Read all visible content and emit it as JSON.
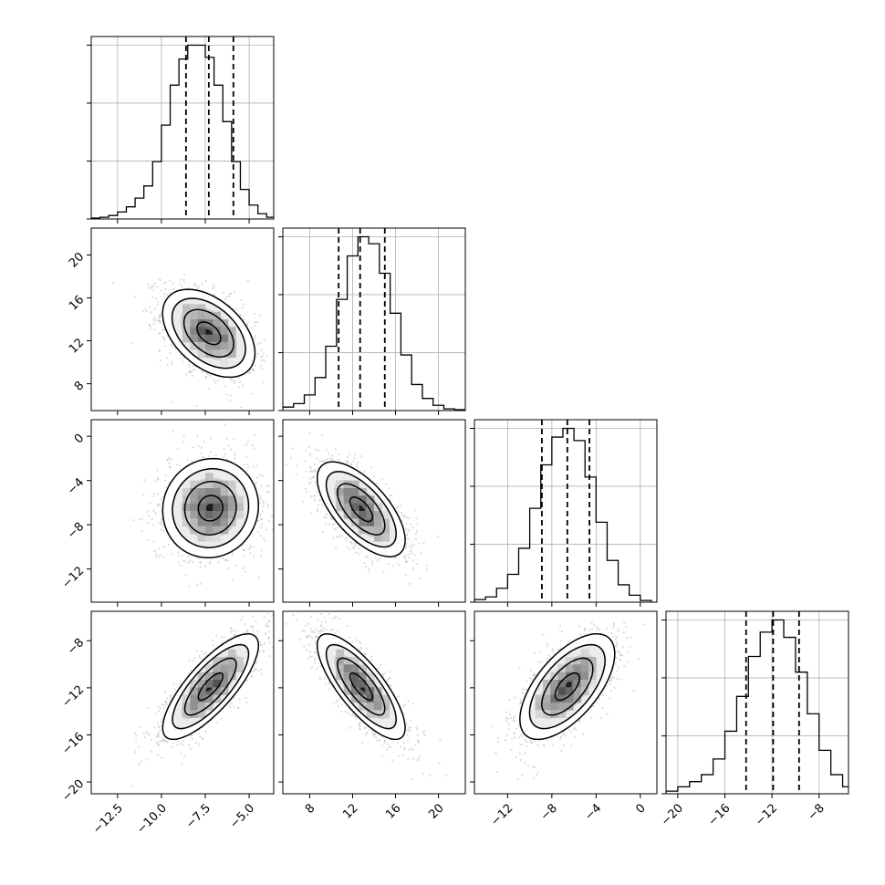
{
  "chart_data": {
    "type": "corner",
    "grid": true,
    "variables": [
      {
        "range": [
          -14,
          -3.6
        ],
        "ticks": [
          -12.5,
          -10.0,
          -7.5,
          -5.0
        ],
        "tick_labels": [
          "−12.5",
          "−10.0",
          "−7.5",
          "−5.0"
        ],
        "quantiles": [
          -8.6,
          -7.3,
          -5.9
        ],
        "hist_bin_edges": [
          -14.0,
          -13.5,
          -13.0,
          -12.5,
          -12.0,
          -11.5,
          -11.0,
          -10.5,
          -10.0,
          -9.5,
          -9.0,
          -8.5,
          -8.0,
          -7.5,
          -7.0,
          -6.5,
          -6.0,
          -5.5,
          -5.0,
          -4.5,
          -4.0,
          -3.5
        ],
        "hist_heights": [
          0.005,
          0.01,
          0.02,
          0.04,
          0.07,
          0.12,
          0.19,
          0.33,
          0.54,
          0.77,
          0.92,
          1.0,
          1.0,
          0.93,
          0.77,
          0.56,
          0.33,
          0.17,
          0.08,
          0.03,
          0.01
        ]
      },
      {
        "range": [
          5.5,
          22.5
        ],
        "ticks": [
          8,
          12,
          16,
          20
        ],
        "tick_labels": [
          "8",
          "12",
          "16",
          "20"
        ],
        "quantiles": [
          10.7,
          12.7,
          15.0
        ],
        "hist_bin_edges": [
          5.5,
          6.5,
          7.5,
          8.5,
          9.5,
          10.5,
          11.5,
          12.5,
          13.5,
          14.5,
          15.5,
          16.5,
          17.5,
          18.5,
          19.5,
          20.5,
          21.5,
          22.5
        ],
        "hist_heights": [
          0.02,
          0.04,
          0.09,
          0.19,
          0.37,
          0.64,
          0.89,
          1.0,
          0.96,
          0.79,
          0.56,
          0.32,
          0.15,
          0.07,
          0.03,
          0.01,
          0.005
        ]
      },
      {
        "range": [
          -15,
          1.5
        ],
        "ticks": [
          -12,
          -8,
          -4,
          0
        ],
        "tick_labels": [
          "−12",
          "−8",
          "−4",
          "0"
        ],
        "quantiles": [
          -8.9,
          -6.6,
          -4.6
        ],
        "hist_bin_edges": [
          -15.0,
          -14.0,
          -13.0,
          -12.0,
          -11.0,
          -10.0,
          -9.0,
          -8.0,
          -7.0,
          -6.0,
          -5.0,
          -4.0,
          -3.0,
          -2.0,
          -1.0,
          0.0,
          1.0
        ],
        "hist_heights": [
          0.015,
          0.03,
          0.08,
          0.16,
          0.31,
          0.54,
          0.79,
          0.95,
          1.0,
          0.93,
          0.72,
          0.46,
          0.24,
          0.1,
          0.04,
          0.01
        ]
      },
      {
        "range": [
          -21,
          -5.5
        ],
        "ticks": [
          -20,
          -16,
          -12,
          -8
        ],
        "tick_labels": [
          "−20",
          "−16",
          "−12",
          "−8"
        ],
        "quantiles": [
          -14.2,
          -11.9,
          -9.7
        ],
        "hist_bin_edges": [
          -21.0,
          -20.0,
          -19.0,
          -18.0,
          -17.0,
          -16.0,
          -15.0,
          -14.0,
          -13.0,
          -12.0,
          -11.0,
          -10.0,
          -9.0,
          -8.0,
          -7.0,
          -6.0,
          -5.0
        ],
        "hist_heights": [
          0.015,
          0.04,
          0.07,
          0.11,
          0.2,
          0.36,
          0.56,
          0.79,
          0.93,
          1.0,
          0.9,
          0.7,
          0.46,
          0.25,
          0.11,
          0.04
        ]
      }
    ],
    "pairs": [
      {
        "row": 1,
        "col": 0,
        "center": [
          -7.3,
          12.7
        ],
        "sd": [
          1.35,
          2.1
        ],
        "corr": -0.45
      },
      {
        "row": 2,
        "col": 0,
        "center": [
          -7.2,
          -6.5
        ],
        "sd": [
          1.4,
          2.3
        ],
        "corr": 0.05
      },
      {
        "row": 2,
        "col": 1,
        "center": [
          12.8,
          -6.6
        ],
        "sd": [
          2.1,
          2.2
        ],
        "corr": -0.65
      },
      {
        "row": 3,
        "col": 0,
        "center": [
          -7.2,
          -11.9
        ],
        "sd": [
          1.4,
          2.3
        ],
        "corr": 0.78
      },
      {
        "row": 3,
        "col": 1,
        "center": [
          12.8,
          -11.9
        ],
        "sd": [
          2.1,
          2.3
        ],
        "corr": -0.78
      },
      {
        "row": 3,
        "col": 2,
        "center": [
          -6.6,
          -11.9
        ],
        "sd": [
          2.2,
          2.3
        ],
        "corr": 0.62
      }
    ]
  }
}
